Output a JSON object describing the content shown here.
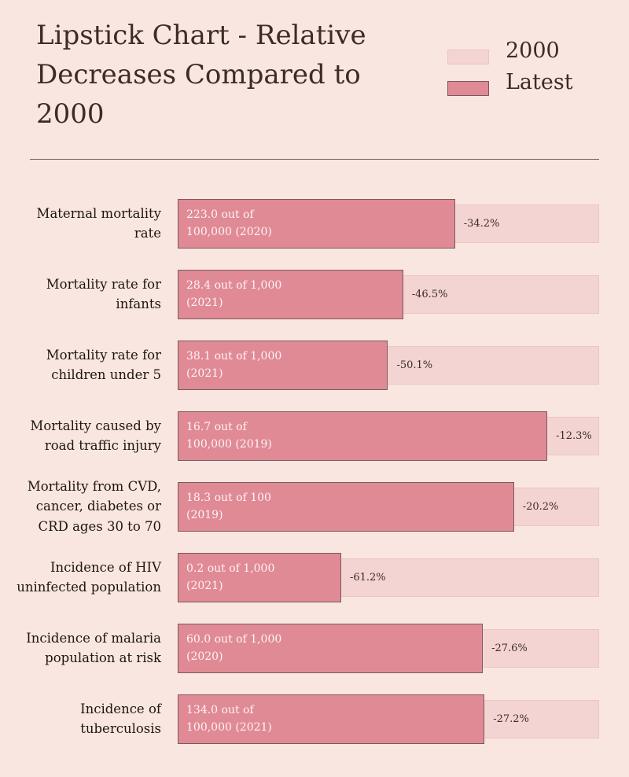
{
  "chart_data": {
    "type": "lipstick",
    "title": "Lipstick Chart - Relative Decreases Compared to 2000",
    "categories": [
      "Maternal mortality rate",
      "Mortality rate for infants",
      "Mortality rate for children under 5",
      "Mortality caused by road traffic injury",
      "Mortality from CVD, cancer, diabetes or CRD ages 30 to 70",
      "Incidence of HIV uninfected population",
      "Incidence of malaria population at risk",
      "Incidence of tuberculosis"
    ],
    "series": [
      {
        "name": "2000",
        "color": "#f3d4d2",
        "values": [
          100,
          100,
          100,
          100,
          100,
          100,
          100,
          100
        ]
      },
      {
        "name": "Latest",
        "color": "#e08a96",
        "values": [
          65.8,
          53.5,
          49.9,
          87.7,
          79.8,
          38.8,
          72.4,
          72.8
        ]
      }
    ],
    "bar_labels": [
      "223.0 out of 100,000 (2020)",
      "28.4 out of 1,000 (2021)",
      "38.1 out of 1,000 (2021)",
      "16.7 out of 100,000 (2019)",
      "18.3 out of 100 (2019)",
      "0.2 out of 1,000 (2021)",
      "60.0 out of 1,000 (2020)",
      "134.0 out of 100,000 (2021)"
    ],
    "annotations": [
      "-34.2%",
      "-46.5%",
      "-50.1%",
      "-12.3%",
      "-20.2%",
      "-61.2%",
      "-27.6%",
      "-27.2%"
    ],
    "xlim": [
      0,
      100
    ],
    "legend": "upper right"
  }
}
